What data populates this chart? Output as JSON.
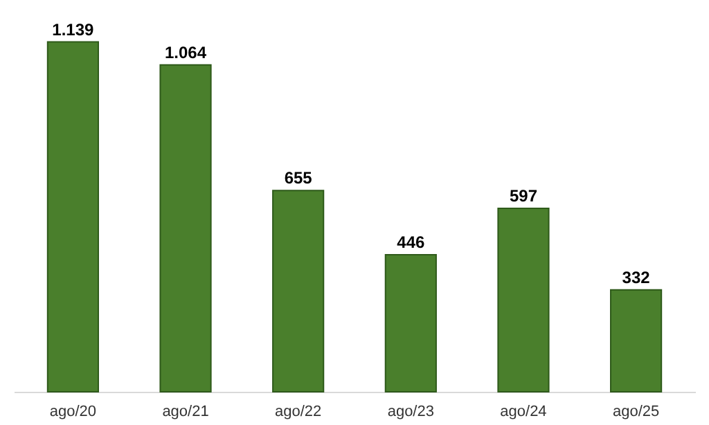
{
  "chart_data": {
    "type": "bar",
    "categories": [
      "ago/20",
      "ago/21",
      "ago/22",
      "ago/23",
      "ago/24",
      "ago/25"
    ],
    "values": [
      1139,
      1064,
      655,
      446,
      597,
      332
    ],
    "value_labels": [
      "1.139",
      "1.064",
      "655",
      "446",
      "597",
      "332"
    ],
    "color": "#4a7f2c"
  }
}
